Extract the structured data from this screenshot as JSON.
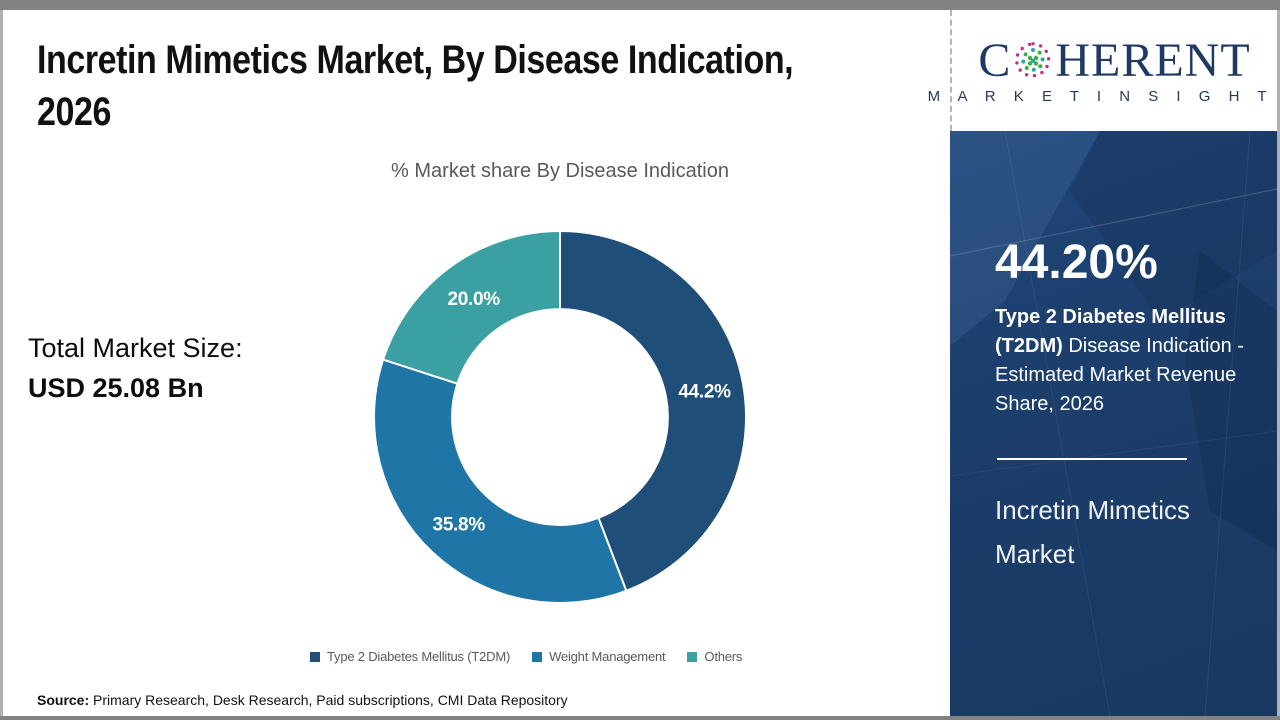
{
  "header": {
    "title_lines": [
      "Incretin Mimetics Market, By Disease Indication,",
      "2026"
    ]
  },
  "logo": {
    "brand_left": "C",
    "brand_right": "HERENT",
    "brand_sub": "M A R K E T   I N S I G H T S",
    "globe_icon": "dotted-globe-icon",
    "brand_color": "#1F3864"
  },
  "chart_data": {
    "type": "pie",
    "donut": true,
    "title": "% Market share By Disease Indication",
    "categories": [
      "Type 2 Diabetes Mellitus (T2DM)",
      "Weight Management",
      "Others"
    ],
    "values": [
      44.2,
      35.8,
      20.0
    ],
    "labels": [
      "44.2%",
      "35.8%",
      "20.0%"
    ],
    "colors": [
      "#1F4E79",
      "#1F76A6",
      "#3BA0A2"
    ],
    "start_angle_deg": 0,
    "direction": "clockwise",
    "legend_position": "bottom",
    "inner_radius_ratio": 0.58
  },
  "market_size": {
    "label": "Total Market Size:",
    "value": "USD 25.08 Bn"
  },
  "sidebar": {
    "stat_value": "44.20%",
    "stat_bold": "Type 2 Diabetes Mellitus (T2DM)",
    "stat_rest": " Disease Indication - Estimated Market Revenue Share, 2026",
    "heading": "Incretin Mimetics Market",
    "bg_color": "#1C3E6C"
  },
  "footer": {
    "source_label": "Source:",
    "source_text": " Primary Research, Desk Research, Paid subscriptions, CMI Data Repository"
  }
}
